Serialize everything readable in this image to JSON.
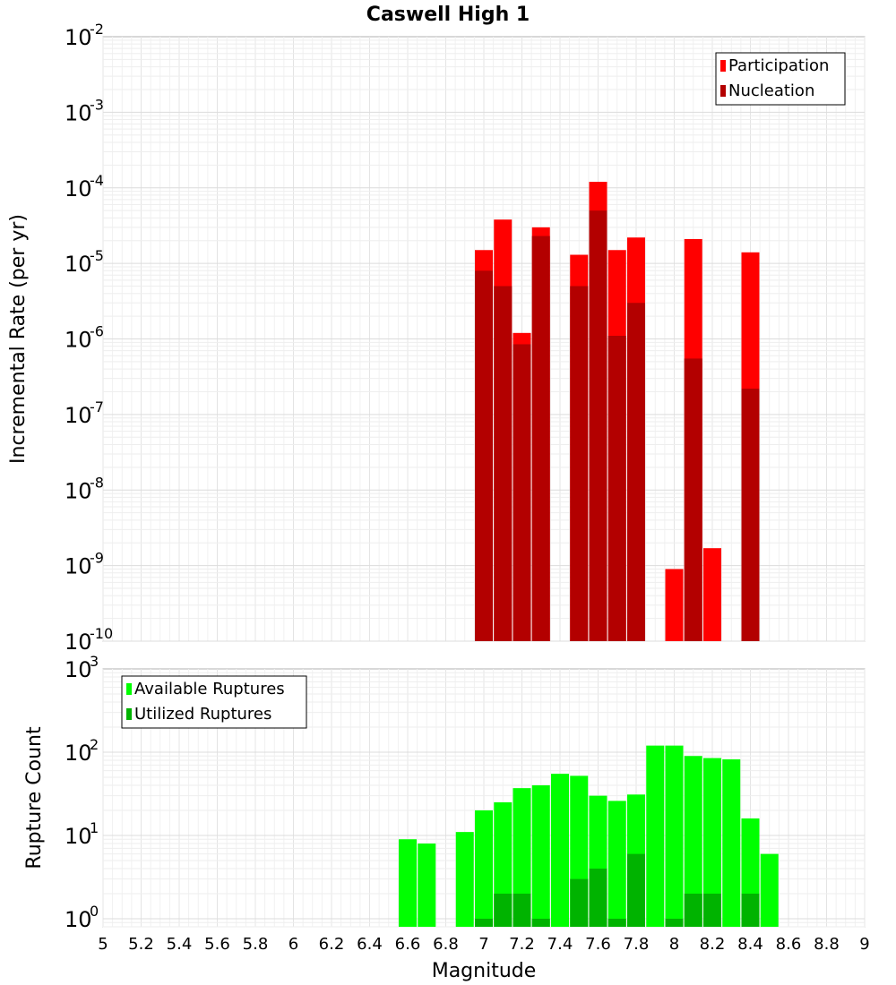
{
  "figure": {
    "title": "Caswell High 1",
    "xlabel": "Magnitude"
  },
  "chart_data": [
    {
      "type": "bar",
      "ylabel": "Incremental Rate (per yr)",
      "yscale": "log",
      "ylim": [
        1e-10,
        0.01
      ],
      "xlim": [
        5,
        9
      ],
      "x": [
        7.0,
        7.1,
        7.2,
        7.3,
        7.5,
        7.6,
        7.7,
        7.8,
        8.0,
        8.1,
        8.2,
        8.4
      ],
      "series": [
        {
          "name": "Participation",
          "color": "#ff0000",
          "values": [
            1.5e-05,
            3.8e-05,
            1.2e-06,
            3e-05,
            1.3e-05,
            0.00012,
            1.5e-05,
            2.2e-05,
            9e-10,
            2.1e-05,
            1.7e-09,
            1.4e-05
          ]
        },
        {
          "name": "Nucleation",
          "color": "#b30000",
          "values": [
            8e-06,
            5e-06,
            8.5e-07,
            2.3e-05,
            5e-06,
            5e-05,
            1.1e-06,
            3e-06,
            null,
            5.5e-07,
            null,
            2.2e-07
          ]
        }
      ],
      "legend": "top-right",
      "yticks": [
        {
          "base": "10",
          "exp": "-10"
        },
        {
          "base": "10",
          "exp": "-9"
        },
        {
          "base": "10",
          "exp": "-8"
        },
        {
          "base": "10",
          "exp": "-7"
        },
        {
          "base": "10",
          "exp": "-6"
        },
        {
          "base": "10",
          "exp": "-5"
        },
        {
          "base": "10",
          "exp": "-4"
        },
        {
          "base": "10",
          "exp": "-3"
        },
        {
          "base": "10",
          "exp": "-2"
        }
      ]
    },
    {
      "type": "bar",
      "ylabel": "Rupture Count",
      "yscale": "log",
      "ylim": [
        0.8,
        1000
      ],
      "xlim": [
        5,
        9
      ],
      "x": [
        6.6,
        6.7,
        6.9,
        7.0,
        7.1,
        7.2,
        7.3,
        7.4,
        7.5,
        7.6,
        7.7,
        7.8,
        7.9,
        8.0,
        8.1,
        8.2,
        8.3,
        8.4,
        8.5
      ],
      "series": [
        {
          "name": "Available Ruptures",
          "color": "#00ff00",
          "values": [
            9,
            8,
            11,
            20,
            25,
            37,
            40,
            55,
            52,
            30,
            26,
            31,
            120,
            120,
            90,
            85,
            82,
            16,
            6
          ]
        },
        {
          "name": "Utilized Ruptures",
          "color": "#00b300",
          "values": [
            null,
            null,
            null,
            1,
            2,
            2,
            1,
            null,
            3,
            4,
            1,
            6,
            null,
            1,
            2,
            2,
            null,
            2,
            null
          ]
        }
      ],
      "legend": "top-left",
      "yticks": [
        {
          "base": "10",
          "exp": "0"
        },
        {
          "base": "10",
          "exp": "1"
        },
        {
          "base": "10",
          "exp": "2"
        },
        {
          "base": "10",
          "exp": "3"
        }
      ]
    }
  ],
  "xticks": [
    "5",
    "5.2",
    "5.4",
    "5.6",
    "5.8",
    "6",
    "6.2",
    "6.4",
    "6.6",
    "6.8",
    "7",
    "7.2",
    "7.4",
    "7.6",
    "7.8",
    "8",
    "8.2",
    "8.4",
    "8.6",
    "8.8",
    "9"
  ]
}
